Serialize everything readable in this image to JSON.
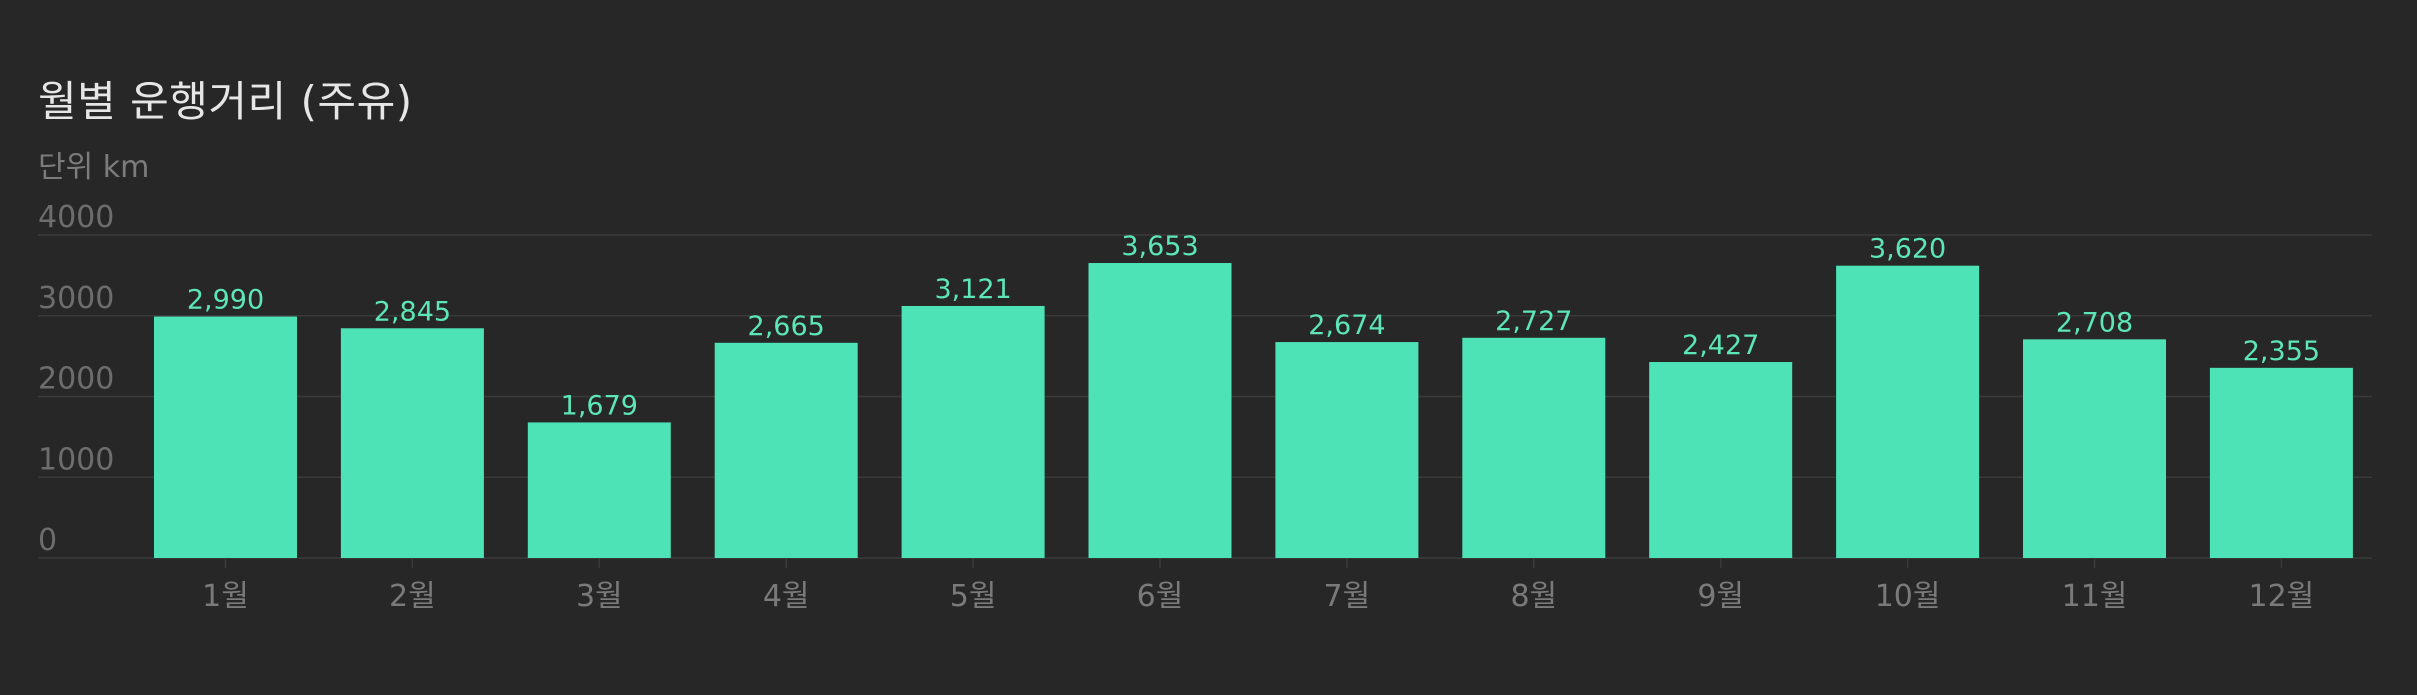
{
  "colors": {
    "background": "#272727",
    "bar": "#4de3b7",
    "label": "#5de6b6",
    "grid": "#3a3a3a",
    "axis_text": "#6d6d6d"
  },
  "chart_data": {
    "type": "bar",
    "title": "월별 운행거리 (주유)",
    "unit_label": "단위 km",
    "categories": [
      "1월",
      "2월",
      "3월",
      "4월",
      "5월",
      "6월",
      "7월",
      "8월",
      "9월",
      "10월",
      "11월",
      "12월"
    ],
    "values": [
      2990,
      2845,
      1679,
      2665,
      3121,
      3653,
      2674,
      2727,
      2427,
      3620,
      2708,
      2355
    ],
    "value_labels": [
      "2,990",
      "2,845",
      "1,679",
      "2,665",
      "3,121",
      "3,653",
      "2,674",
      "2,727",
      "2,427",
      "3,620",
      "2,708",
      "2,355"
    ],
    "yticks": [
      "0",
      "1000",
      "2000",
      "3000",
      "4000"
    ],
    "ylim": [
      0,
      4000
    ],
    "grid": true,
    "xlabel": "",
    "ylabel": ""
  }
}
